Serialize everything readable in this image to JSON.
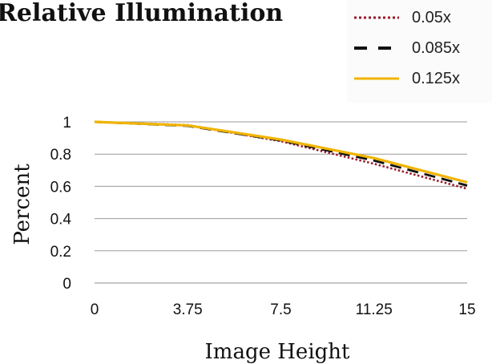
{
  "chart_data": {
    "type": "line",
    "title": "Relative Illumination",
    "xlabel": "Image Height",
    "ylabel": "Percent",
    "x": [
      0,
      3.75,
      7.5,
      11.25,
      15
    ],
    "x_tick_labels": [
      "0",
      "3.75",
      "7.5",
      "11.25",
      "15"
    ],
    "y_tick_labels": [
      "0",
      "0.2",
      "0.4",
      "0.6",
      "0.8",
      "1"
    ],
    "ylim": [
      0,
      1
    ],
    "grid": "horizontal",
    "legend_position": "top-right",
    "series": [
      {
        "name": "0.05x",
        "values": [
          1.0,
          0.98,
          0.88,
          0.74,
          0.585
        ],
        "color": "#9b1b2a",
        "style": "dotted"
      },
      {
        "name": "0.085x",
        "values": [
          1.0,
          0.975,
          0.885,
          0.76,
          0.605
        ],
        "color": "#111111",
        "style": "dashed"
      },
      {
        "name": "0.125x",
        "values": [
          1.0,
          0.978,
          0.89,
          0.775,
          0.625
        ],
        "color": "#f0b400",
        "style": "solid"
      }
    ]
  }
}
